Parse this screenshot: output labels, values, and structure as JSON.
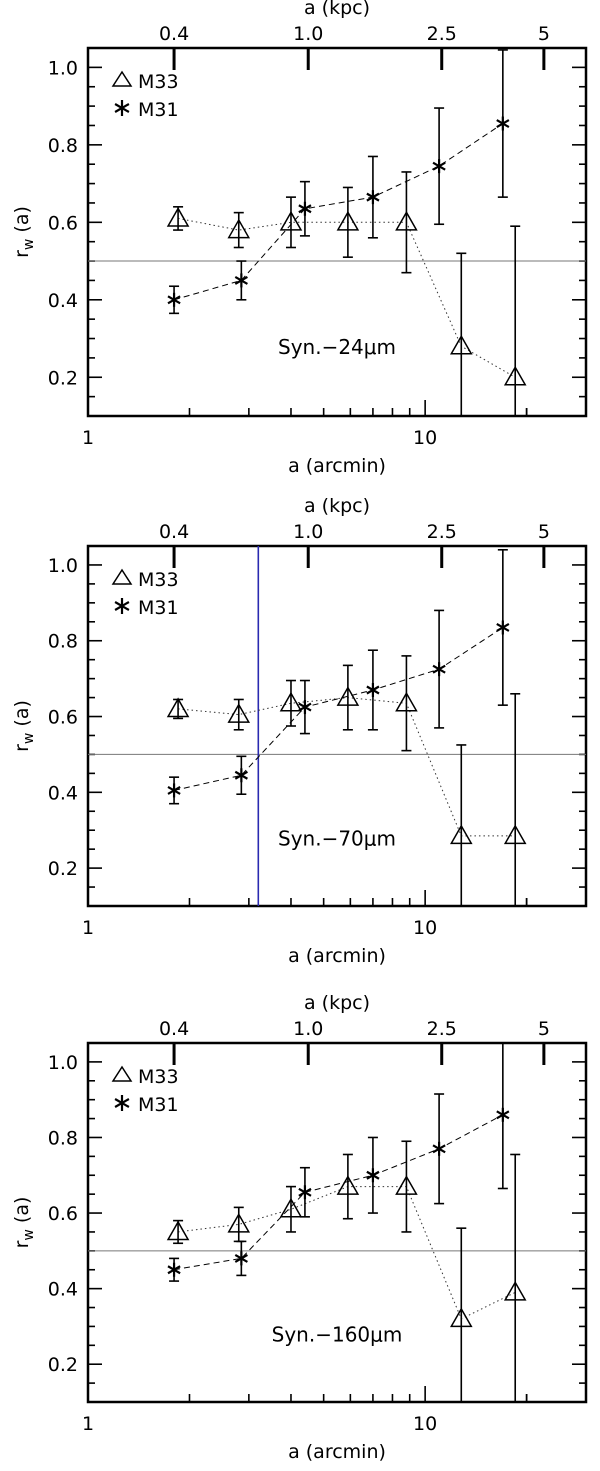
{
  "chart_data": [
    {
      "type": "scatter",
      "annotation": "Syn.−24μm",
      "xlabel": "a (arcmin)",
      "x2label": "a (kpc)",
      "ylabel": "r",
      "ylabel_sub": "w",
      "ylabel_tail": " (a)",
      "xscale": "log",
      "xlim": [
        1,
        30
      ],
      "ylim": [
        0.1,
        1.05
      ],
      "x_ticks": [
        {
          "v": 1,
          "label": "1"
        },
        {
          "v": 10,
          "label": "10"
        }
      ],
      "x2_ticks": [
        {
          "v": 1.8,
          "label": "0.4"
        },
        {
          "v": 4.5,
          "label": "1.0"
        },
        {
          "v": 11.2,
          "label": "2.5"
        },
        {
          "v": 22.5,
          "label": "5"
        }
      ],
      "y_ticks": [
        0.2,
        0.4,
        0.6,
        0.8,
        1.0
      ],
      "y_tick_labels": [
        "0.2",
        "0.4",
        "0.6",
        "0.8",
        "1.0"
      ],
      "ref_y": 0.5,
      "vline_x": null,
      "legend": {
        "position": "top-left",
        "entries": [
          "M33",
          "M31"
        ]
      },
      "series": [
        {
          "name": "M33",
          "marker": "triangle",
          "line": "dotted",
          "x": [
            1.85,
            2.8,
            4.0,
            5.9,
            8.8,
            12.8,
            18.5
          ],
          "y": [
            0.61,
            0.58,
            0.6,
            0.6,
            0.6,
            0.28,
            0.2
          ],
          "err": [
            0.03,
            0.045,
            0.065,
            0.09,
            0.13,
            0.24,
            0.39
          ]
        },
        {
          "name": "M31",
          "marker": "asterisk",
          "line": "dashed",
          "x": [
            1.8,
            2.85,
            4.4,
            7.0,
            11.0,
            17.0
          ],
          "y": [
            0.4,
            0.45,
            0.635,
            0.665,
            0.745,
            0.855
          ],
          "err": [
            0.035,
            0.05,
            0.07,
            0.105,
            0.15,
            0.19
          ]
        }
      ]
    },
    {
      "type": "scatter",
      "annotation": "Syn.−70μm",
      "xlabel": "a (arcmin)",
      "x2label": "a (kpc)",
      "ylabel": "r",
      "ylabel_sub": "w",
      "ylabel_tail": " (a)",
      "xscale": "log",
      "xlim": [
        1,
        30
      ],
      "ylim": [
        0.1,
        1.05
      ],
      "x_ticks": [
        {
          "v": 1,
          "label": "1"
        },
        {
          "v": 10,
          "label": "10"
        }
      ],
      "x2_ticks": [
        {
          "v": 1.8,
          "label": "0.4"
        },
        {
          "v": 4.5,
          "label": "1.0"
        },
        {
          "v": 11.2,
          "label": "2.5"
        },
        {
          "v": 22.5,
          "label": "5"
        }
      ],
      "y_ticks": [
        0.2,
        0.4,
        0.6,
        0.8,
        1.0
      ],
      "y_tick_labels": [
        "0.2",
        "0.4",
        "0.6",
        "0.8",
        "1.0"
      ],
      "ref_y": 0.5,
      "vline_x": 3.2,
      "legend": {
        "position": "top-left",
        "entries": [
          "M33",
          "M31"
        ]
      },
      "series": [
        {
          "name": "M33",
          "marker": "triangle",
          "line": "dotted",
          "x": [
            1.85,
            2.8,
            4.0,
            5.9,
            8.8,
            12.8,
            18.5
          ],
          "y": [
            0.62,
            0.605,
            0.635,
            0.65,
            0.635,
            0.285,
            0.285
          ],
          "err": [
            0.025,
            0.04,
            0.06,
            0.085,
            0.125,
            0.24,
            0.375
          ]
        },
        {
          "name": "M31",
          "marker": "asterisk",
          "line": "dashed",
          "x": [
            1.8,
            2.85,
            4.4,
            7.0,
            11.0,
            17.0
          ],
          "y": [
            0.405,
            0.445,
            0.625,
            0.67,
            0.725,
            0.835
          ],
          "err": [
            0.035,
            0.05,
            0.07,
            0.105,
            0.155,
            0.205
          ]
        }
      ]
    },
    {
      "type": "scatter",
      "annotation": "Syn.−160μm",
      "xlabel": "a (arcmin)",
      "x2label": "a (kpc)",
      "ylabel": "r",
      "ylabel_sub": "w",
      "ylabel_tail": " (a)",
      "xscale": "log",
      "xlim": [
        1,
        30
      ],
      "ylim": [
        0.1,
        1.05
      ],
      "x_ticks": [
        {
          "v": 1,
          "label": "1"
        },
        {
          "v": 10,
          "label": "10"
        }
      ],
      "x2_ticks": [
        {
          "v": 1.8,
          "label": "0.4"
        },
        {
          "v": 4.5,
          "label": "1.0"
        },
        {
          "v": 11.2,
          "label": "2.5"
        },
        {
          "v": 22.5,
          "label": "5"
        }
      ],
      "y_ticks": [
        0.2,
        0.4,
        0.6,
        0.8,
        1.0
      ],
      "y_tick_labels": [
        "0.2",
        "0.4",
        "0.6",
        "0.8",
        "1.0"
      ],
      "ref_y": 0.5,
      "vline_x": null,
      "legend": {
        "position": "top-left",
        "entries": [
          "M33",
          "M31"
        ]
      },
      "series": [
        {
          "name": "M33",
          "marker": "triangle",
          "line": "dotted",
          "x": [
            1.85,
            2.8,
            4.0,
            5.9,
            8.8,
            12.8,
            18.5
          ],
          "y": [
            0.55,
            0.57,
            0.61,
            0.67,
            0.67,
            0.32,
            0.39
          ],
          "err": [
            0.03,
            0.045,
            0.06,
            0.085,
            0.12,
            0.24,
            0.365
          ]
        },
        {
          "name": "M31",
          "marker": "asterisk",
          "line": "dashed",
          "x": [
            1.8,
            2.85,
            4.4,
            7.0,
            11.0,
            17.0
          ],
          "y": [
            0.45,
            0.48,
            0.655,
            0.7,
            0.77,
            0.86
          ],
          "err": [
            0.03,
            0.045,
            0.065,
            0.1,
            0.145,
            0.195
          ]
        }
      ]
    }
  ]
}
